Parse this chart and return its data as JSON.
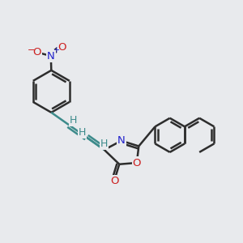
{
  "background_color": "#e8eaed",
  "bond_color": "#2d2d2d",
  "bond_color_teal": "#3d8b8b",
  "nitrogen_color": "#2020cc",
  "oxygen_color": "#cc2020",
  "atom_bg": "#e8eaed",
  "bond_width": 1.8,
  "font_size_atom": 9.5,
  "xlim": [
    0,
    12
  ],
  "ylim": [
    0,
    12
  ]
}
